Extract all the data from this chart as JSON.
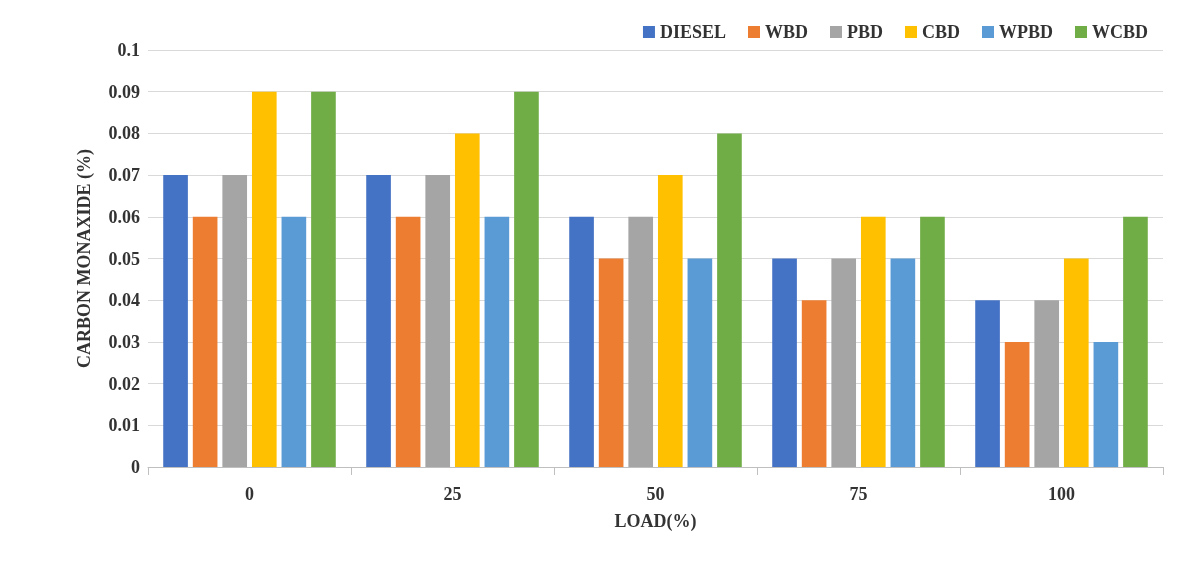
{
  "chart_data": {
    "type": "bar",
    "xlabel": "LOAD(%)",
    "ylabel": "CARBON MONAXIDE (%)",
    "categories": [
      "0",
      "25",
      "50",
      "75",
      "100"
    ],
    "series": [
      {
        "name": "DIESEL",
        "color": "#4472c4",
        "values": [
          0.07,
          0.07,
          0.06,
          0.05,
          0.04
        ]
      },
      {
        "name": "WBD",
        "color": "#ed7d31",
        "values": [
          0.06,
          0.06,
          0.05,
          0.04,
          0.03
        ]
      },
      {
        "name": "PBD",
        "color": "#a5a5a5",
        "values": [
          0.07,
          0.07,
          0.06,
          0.05,
          0.04
        ]
      },
      {
        "name": "CBD",
        "color": "#ffc000",
        "values": [
          0.09,
          0.08,
          0.07,
          0.06,
          0.05
        ]
      },
      {
        "name": "WPBD",
        "color": "#5b9bd5",
        "values": [
          0.06,
          0.06,
          0.05,
          0.05,
          0.03
        ]
      },
      {
        "name": "WCBD",
        "color": "#70ad47",
        "values": [
          0.09,
          0.09,
          0.08,
          0.06,
          0.06
        ]
      }
    ],
    "ylim": [
      0,
      0.1
    ],
    "yticks": [
      0,
      0.01,
      0.02,
      0.03,
      0.04,
      0.05,
      0.06,
      0.07,
      0.08,
      0.09,
      0.1
    ],
    "grid": "y",
    "legend": "top right"
  }
}
